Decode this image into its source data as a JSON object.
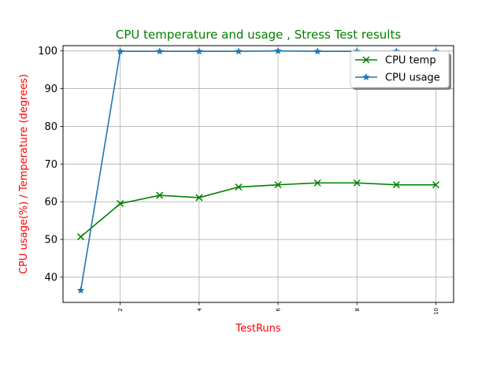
{
  "chart_data": {
    "type": "line",
    "title": "CPU temperature and usage , Stress Test results",
    "xlabel": "TestRuns",
    "ylabel": "CPU usage(%) / Temperature (degrees)",
    "x": [
      1,
      2,
      3,
      4,
      5,
      6,
      7,
      8,
      9,
      10
    ],
    "x_ticks": [
      "2",
      "4",
      "6",
      "8",
      "10"
    ],
    "y_ticks": [
      "40",
      "50",
      "60",
      "70",
      "80",
      "90",
      "100"
    ],
    "xlim": [
      0.55,
      10.45
    ],
    "ylim": [
      33.3,
      101.4
    ],
    "grid": true,
    "legend_position": "top-right",
    "series": [
      {
        "name": "CPU temp",
        "color": "#008000",
        "marker": "x",
        "values": [
          50.7,
          59.5,
          61.7,
          61.1,
          63.9,
          64.5,
          65.0,
          65.0,
          64.5,
          64.5
        ]
      },
      {
        "name": "CPU usage",
        "color": "#1f77b4",
        "marker": "star",
        "values": [
          36.5,
          99.9,
          99.9,
          99.9,
          99.9,
          100.0,
          99.9,
          99.9,
          99.9,
          99.9
        ]
      }
    ],
    "colors": {
      "title": "#008000",
      "axis_labels": "#ff0000",
      "grid": "#b0b0b0"
    }
  }
}
